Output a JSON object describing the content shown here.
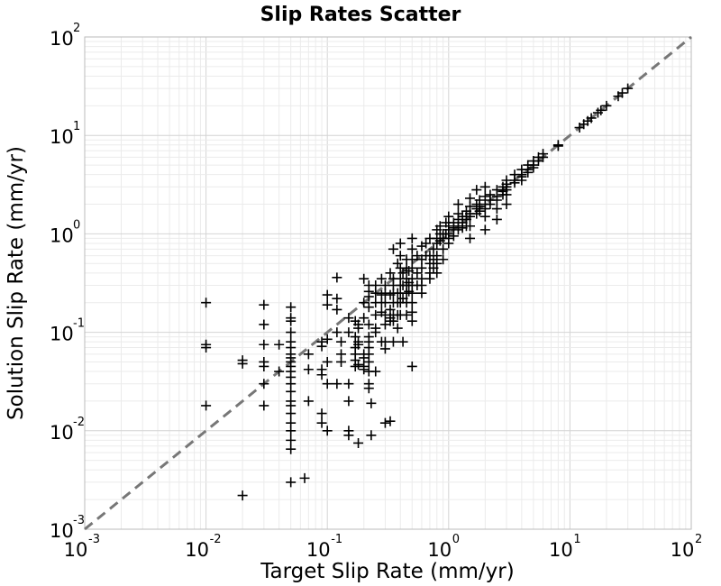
{
  "chart_data": {
    "type": "scatter",
    "title": "Slip Rates Scatter",
    "xlabel": "Target Slip Rate (mm/yr)",
    "ylabel": "Solution Slip Rate (mm/yr)",
    "xscale": "log",
    "yscale": "log",
    "xlim": [
      0.001,
      100
    ],
    "ylim": [
      0.001,
      100
    ],
    "grid": true,
    "x_ticks": [
      {
        "base": "10",
        "exp": "-3"
      },
      {
        "base": "10",
        "exp": "-2"
      },
      {
        "base": "10",
        "exp": "-1"
      },
      {
        "base": "10",
        "exp": "0"
      },
      {
        "base": "10",
        "exp": "1"
      },
      {
        "base": "10",
        "exp": "2"
      }
    ],
    "y_ticks": [
      {
        "base": "10",
        "exp": "-3"
      },
      {
        "base": "10",
        "exp": "-2"
      },
      {
        "base": "10",
        "exp": "-1"
      },
      {
        "base": "10",
        "exp": "0"
      },
      {
        "base": "10",
        "exp": "1"
      },
      {
        "base": "10",
        "exp": "2"
      }
    ],
    "reference_line": {
      "style": "dashed",
      "color": "#777777",
      "from": [
        0.001,
        0.001
      ],
      "to": [
        100,
        100
      ]
    },
    "marker": {
      "shape": "plus",
      "color": "#000000"
    },
    "series": [
      {
        "points": [
          [
            0.01,
            0.2
          ],
          [
            0.01,
            0.075
          ],
          [
            0.01,
            0.07
          ],
          [
            0.01,
            0.018
          ],
          [
            0.02,
            0.052
          ],
          [
            0.02,
            0.048
          ],
          [
            0.02,
            0.0022
          ],
          [
            0.03,
            0.19
          ],
          [
            0.03,
            0.12
          ],
          [
            0.03,
            0.075
          ],
          [
            0.03,
            0.05
          ],
          [
            0.03,
            0.045
          ],
          [
            0.03,
            0.03
          ],
          [
            0.03,
            0.018
          ],
          [
            0.04,
            0.075
          ],
          [
            0.04,
            0.04
          ],
          [
            0.05,
            0.18
          ],
          [
            0.05,
            0.14
          ],
          [
            0.05,
            0.13
          ],
          [
            0.05,
            0.1
          ],
          [
            0.05,
            0.08
          ],
          [
            0.05,
            0.07
          ],
          [
            0.05,
            0.06
          ],
          [
            0.05,
            0.055
          ],
          [
            0.05,
            0.05
          ],
          [
            0.05,
            0.045
          ],
          [
            0.05,
            0.04
          ],
          [
            0.05,
            0.035
          ],
          [
            0.05,
            0.03
          ],
          [
            0.05,
            0.025
          ],
          [
            0.05,
            0.02
          ],
          [
            0.05,
            0.018
          ],
          [
            0.05,
            0.015
          ],
          [
            0.05,
            0.012
          ],
          [
            0.05,
            0.01
          ],
          [
            0.05,
            0.008
          ],
          [
            0.05,
            0.0065
          ],
          [
            0.05,
            0.003
          ],
          [
            0.065,
            0.0033
          ],
          [
            0.07,
            0.06
          ],
          [
            0.07,
            0.042
          ],
          [
            0.07,
            0.02
          ],
          [
            0.09,
            0.08
          ],
          [
            0.09,
            0.072
          ],
          [
            0.09,
            0.042
          ],
          [
            0.09,
            0.037
          ],
          [
            0.09,
            0.015
          ],
          [
            0.09,
            0.012
          ],
          [
            0.1,
            0.24
          ],
          [
            0.1,
            0.19
          ],
          [
            0.1,
            0.085
          ],
          [
            0.1,
            0.05
          ],
          [
            0.1,
            0.03
          ],
          [
            0.1,
            0.01
          ],
          [
            0.12,
            0.36
          ],
          [
            0.12,
            0.22
          ],
          [
            0.12,
            0.17
          ],
          [
            0.12,
            0.1
          ],
          [
            0.12,
            0.03
          ],
          [
            0.13,
            0.08
          ],
          [
            0.13,
            0.06
          ],
          [
            0.13,
            0.05
          ],
          [
            0.15,
            0.14
          ],
          [
            0.15,
            0.1
          ],
          [
            0.15,
            0.03
          ],
          [
            0.15,
            0.02
          ],
          [
            0.15,
            0.01
          ],
          [
            0.15,
            0.009
          ],
          [
            0.17,
            0.13
          ],
          [
            0.17,
            0.09
          ],
          [
            0.17,
            0.07
          ],
          [
            0.17,
            0.06
          ],
          [
            0.17,
            0.052
          ],
          [
            0.17,
            0.045
          ],
          [
            0.18,
            0.12
          ],
          [
            0.18,
            0.11
          ],
          [
            0.18,
            0.08
          ],
          [
            0.18,
            0.075
          ],
          [
            0.18,
            0.047
          ],
          [
            0.18,
            0.0075
          ],
          [
            0.2,
            0.35
          ],
          [
            0.2,
            0.2
          ],
          [
            0.2,
            0.14
          ],
          [
            0.2,
            0.06
          ],
          [
            0.2,
            0.055
          ],
          [
            0.2,
            0.045
          ],
          [
            0.2,
            0.042
          ],
          [
            0.22,
            0.3
          ],
          [
            0.22,
            0.26
          ],
          [
            0.22,
            0.23
          ],
          [
            0.22,
            0.18
          ],
          [
            0.22,
            0.12
          ],
          [
            0.22,
            0.09
          ],
          [
            0.22,
            0.08
          ],
          [
            0.22,
            0.07
          ],
          [
            0.22,
            0.06
          ],
          [
            0.22,
            0.05
          ],
          [
            0.22,
            0.04
          ],
          [
            0.22,
            0.03
          ],
          [
            0.22,
            0.027
          ],
          [
            0.23,
            0.019
          ],
          [
            0.23,
            0.009
          ],
          [
            0.25,
            0.3
          ],
          [
            0.25,
            0.25
          ],
          [
            0.25,
            0.2
          ],
          [
            0.25,
            0.15
          ],
          [
            0.25,
            0.11
          ],
          [
            0.25,
            0.1
          ],
          [
            0.25,
            0.04
          ],
          [
            0.28,
            0.35
          ],
          [
            0.28,
            0.24
          ],
          [
            0.28,
            0.2
          ],
          [
            0.28,
            0.16
          ],
          [
            0.28,
            0.08
          ],
          [
            0.3,
            0.3
          ],
          [
            0.3,
            0.25
          ],
          [
            0.3,
            0.2
          ],
          [
            0.3,
            0.15
          ],
          [
            0.3,
            0.12
          ],
          [
            0.3,
            0.08
          ],
          [
            0.3,
            0.068
          ],
          [
            0.3,
            0.012
          ],
          [
            0.33,
            0.4
          ],
          [
            0.33,
            0.24
          ],
          [
            0.33,
            0.17
          ],
          [
            0.33,
            0.14
          ],
          [
            0.33,
            0.13
          ],
          [
            0.33,
            0.0125
          ],
          [
            0.35,
            0.7
          ],
          [
            0.35,
            0.35
          ],
          [
            0.35,
            0.3
          ],
          [
            0.35,
            0.25
          ],
          [
            0.35,
            0.2
          ],
          [
            0.35,
            0.15
          ],
          [
            0.35,
            0.13
          ],
          [
            0.35,
            0.08
          ],
          [
            0.38,
            0.5
          ],
          [
            0.38,
            0.25
          ],
          [
            0.38,
            0.2
          ],
          [
            0.38,
            0.15
          ],
          [
            0.38,
            0.11
          ],
          [
            0.4,
            0.8
          ],
          [
            0.4,
            0.6
          ],
          [
            0.4,
            0.45
          ],
          [
            0.4,
            0.35
          ],
          [
            0.4,
            0.3
          ],
          [
            0.4,
            0.25
          ],
          [
            0.4,
            0.2
          ],
          [
            0.4,
            0.15
          ],
          [
            0.42,
            0.4
          ],
          [
            0.42,
            0.3
          ],
          [
            0.42,
            0.22
          ],
          [
            0.42,
            0.08
          ],
          [
            0.45,
            0.55
          ],
          [
            0.45,
            0.45
          ],
          [
            0.45,
            0.35
          ],
          [
            0.45,
            0.3
          ],
          [
            0.45,
            0.25
          ],
          [
            0.45,
            0.2
          ],
          [
            0.45,
            0.15
          ],
          [
            0.47,
            0.42
          ],
          [
            0.47,
            0.32
          ],
          [
            0.47,
            0.26
          ],
          [
            0.5,
            0.9
          ],
          [
            0.5,
            0.7
          ],
          [
            0.5,
            0.55
          ],
          [
            0.5,
            0.45
          ],
          [
            0.5,
            0.35
          ],
          [
            0.5,
            0.3
          ],
          [
            0.5,
            0.25
          ],
          [
            0.5,
            0.2
          ],
          [
            0.5,
            0.16
          ],
          [
            0.5,
            0.13
          ],
          [
            0.5,
            0.045
          ],
          [
            0.55,
            0.6
          ],
          [
            0.55,
            0.4
          ],
          [
            0.55,
            0.3
          ],
          [
            0.6,
            0.75
          ],
          [
            0.6,
            0.55
          ],
          [
            0.6,
            0.45
          ],
          [
            0.6,
            0.35
          ],
          [
            0.6,
            0.25
          ],
          [
            0.6,
            0.3
          ],
          [
            0.65,
            0.8
          ],
          [
            0.65,
            0.6
          ],
          [
            0.7,
            0.9
          ],
          [
            0.7,
            0.6
          ],
          [
            0.7,
            0.5
          ],
          [
            0.7,
            0.4
          ],
          [
            0.7,
            0.35
          ],
          [
            0.75,
            0.7
          ],
          [
            0.75,
            0.55
          ],
          [
            0.75,
            0.45
          ],
          [
            0.8,
            1.1
          ],
          [
            0.8,
            0.9
          ],
          [
            0.8,
            0.8
          ],
          [
            0.8,
            0.6
          ],
          [
            0.8,
            0.5
          ],
          [
            0.8,
            0.4
          ],
          [
            0.85,
            1.2
          ],
          [
            0.85,
            1.0
          ],
          [
            0.85,
            0.85
          ],
          [
            0.9,
            1.0
          ],
          [
            0.9,
            0.9
          ],
          [
            0.9,
            0.7
          ],
          [
            0.9,
            0.55
          ],
          [
            0.95,
            1.3
          ],
          [
            0.95,
            1.0
          ],
          [
            1.0,
            1.5
          ],
          [
            1.0,
            1.2
          ],
          [
            1.0,
            1.1
          ],
          [
            1.0,
            1.0
          ],
          [
            1.0,
            0.9
          ],
          [
            1.0,
            0.8
          ],
          [
            1.1,
            1.3
          ],
          [
            1.1,
            1.15
          ],
          [
            1.1,
            0.95
          ],
          [
            1.2,
            2.0
          ],
          [
            1.2,
            1.6
          ],
          [
            1.2,
            1.4
          ],
          [
            1.2,
            1.2
          ],
          [
            1.2,
            1.1
          ],
          [
            1.3,
            1.5
          ],
          [
            1.3,
            1.3
          ],
          [
            1.3,
            1.15
          ],
          [
            1.4,
            1.7
          ],
          [
            1.4,
            1.5
          ],
          [
            1.4,
            1.4
          ],
          [
            1.4,
            1.2
          ],
          [
            1.5,
            2.3
          ],
          [
            1.5,
            1.9
          ],
          [
            1.5,
            1.6
          ],
          [
            1.5,
            1.5
          ],
          [
            1.5,
            1.2
          ],
          [
            1.5,
            0.9
          ],
          [
            1.7,
            2.8
          ],
          [
            1.7,
            2.0
          ],
          [
            1.7,
            1.8
          ],
          [
            1.7,
            1.6
          ],
          [
            1.8,
            2.2
          ],
          [
            1.8,
            1.9
          ],
          [
            1.8,
            1.7
          ],
          [
            2.0,
            3.0
          ],
          [
            2.0,
            2.4
          ],
          [
            2.0,
            2.0
          ],
          [
            2.0,
            1.8
          ],
          [
            2.0,
            1.5
          ],
          [
            2.0,
            1.1
          ],
          [
            2.2,
            2.5
          ],
          [
            2.2,
            2.2
          ],
          [
            2.2,
            2.0
          ],
          [
            2.5,
            2.8
          ],
          [
            2.5,
            2.4
          ],
          [
            2.5,
            2.2
          ],
          [
            2.5,
            1.8
          ],
          [
            2.5,
            1.4
          ],
          [
            2.8,
            3.0
          ],
          [
            2.8,
            2.7
          ],
          [
            2.8,
            2.5
          ],
          [
            3.0,
            3.5
          ],
          [
            3.0,
            3.2
          ],
          [
            3.0,
            3.0
          ],
          [
            3.0,
            2.8
          ],
          [
            3.0,
            2.5
          ],
          [
            3.0,
            2.0
          ],
          [
            3.5,
            4.0
          ],
          [
            3.5,
            3.5
          ],
          [
            3.5,
            3.3
          ],
          [
            4.0,
            4.5
          ],
          [
            4.0,
            4.0
          ],
          [
            4.0,
            3.8
          ],
          [
            4.0,
            3.5
          ],
          [
            4.5,
            5.0
          ],
          [
            4.5,
            4.5
          ],
          [
            4.5,
            4.2
          ],
          [
            5.0,
            5.5
          ],
          [
            5.0,
            5.0
          ],
          [
            5.0,
            4.7
          ],
          [
            5.5,
            6.0
          ],
          [
            5.5,
            5.5
          ],
          [
            6.0,
            6.5
          ],
          [
            6.0,
            6.0
          ],
          [
            8.0,
            8.0
          ],
          [
            8.0,
            7.8
          ],
          [
            12.0,
            12.0
          ],
          [
            13.0,
            13.0
          ],
          [
            14.0,
            14.0
          ],
          [
            15.0,
            15.0
          ],
          [
            17.0,
            17.0
          ],
          [
            18.0,
            18.0
          ],
          [
            20.0,
            20.0
          ],
          [
            25.0,
            25.0
          ],
          [
            27.0,
            27.0
          ],
          [
            30.0,
            30.0
          ]
        ]
      }
    ]
  }
}
